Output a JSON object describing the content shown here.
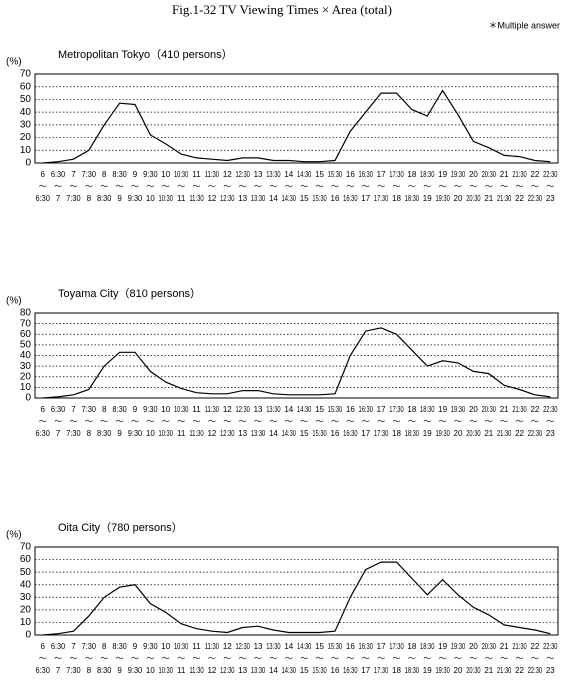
{
  "page": {
    "title": "Fig.1-32 TV Viewing Times × Area (total)",
    "note": "＊Multiple answer",
    "range_mark": "～"
  },
  "chart_data": [
    {
      "type": "line",
      "title": "Metropolitan Tokyo（410 persons）",
      "y_label": "(%)",
      "color": "#000000",
      "categories": [
        [
          "6",
          "6:30"
        ],
        [
          "6:30",
          "7"
        ],
        [
          "7",
          "7:30"
        ],
        [
          "7:30",
          "8"
        ],
        [
          "8",
          "8:30"
        ],
        [
          "8:30",
          "9"
        ],
        [
          "9",
          "9:30"
        ],
        [
          "9:30",
          "10"
        ],
        [
          "10",
          "10:30"
        ],
        [
          "10:30",
          "11"
        ],
        [
          "11",
          "11:30"
        ],
        [
          "11:30",
          "12"
        ],
        [
          "12",
          "12:30"
        ],
        [
          "12:30",
          "13"
        ],
        [
          "13",
          "13:30"
        ],
        [
          "13:30",
          "14"
        ],
        [
          "14",
          "14:30"
        ],
        [
          "14:30",
          "15"
        ],
        [
          "15",
          "15:30"
        ],
        [
          "15:30",
          "16"
        ],
        [
          "16",
          "16:30"
        ],
        [
          "16:30",
          "17"
        ],
        [
          "17",
          "17:30"
        ],
        [
          "17:30",
          "18"
        ],
        [
          "18",
          "18:30"
        ],
        [
          "18:30",
          "19"
        ],
        [
          "19",
          "19:30"
        ],
        [
          "19:30",
          "20"
        ],
        [
          "20",
          "20:30"
        ],
        [
          "20:30",
          "21"
        ],
        [
          "21",
          "21:30"
        ],
        [
          "21:30",
          "22"
        ],
        [
          "22",
          "22:30"
        ],
        [
          "22:30",
          "23"
        ]
      ],
      "values": [
        0,
        1,
        3,
        10,
        30,
        47,
        46,
        22,
        15,
        7,
        4,
        3,
        2,
        4,
        4,
        2,
        2,
        1,
        1,
        2,
        25,
        40,
        55,
        55,
        42,
        37,
        57,
        38,
        17,
        12,
        6,
        5,
        2,
        1
      ],
      "ylim": [
        0,
        70
      ],
      "yticks": [
        0,
        10,
        20,
        30,
        40,
        50,
        60,
        70
      ],
      "grid": true
    },
    {
      "type": "line",
      "title": "Toyama City（810 persons）",
      "y_label": "(%)",
      "color": "#000000",
      "categories": [
        [
          "6",
          "6:30"
        ],
        [
          "6:30",
          "7"
        ],
        [
          "7",
          "7:30"
        ],
        [
          "7:30",
          "8"
        ],
        [
          "8",
          "8:30"
        ],
        [
          "8:30",
          "9"
        ],
        [
          "9",
          "9:30"
        ],
        [
          "9:30",
          "10"
        ],
        [
          "10",
          "10:30"
        ],
        [
          "10:30",
          "11"
        ],
        [
          "11",
          "11:30"
        ],
        [
          "11:30",
          "12"
        ],
        [
          "12",
          "12:30"
        ],
        [
          "12:30",
          "13"
        ],
        [
          "13",
          "13:30"
        ],
        [
          "13:30",
          "14"
        ],
        [
          "14",
          "14:30"
        ],
        [
          "14:30",
          "15"
        ],
        [
          "15",
          "15:30"
        ],
        [
          "15:30",
          "16"
        ],
        [
          "16",
          "16:30"
        ],
        [
          "16:30",
          "17"
        ],
        [
          "17",
          "17:30"
        ],
        [
          "17:30",
          "18"
        ],
        [
          "18",
          "18:30"
        ],
        [
          "18:30",
          "19"
        ],
        [
          "19",
          "19:30"
        ],
        [
          "19:30",
          "20"
        ],
        [
          "20",
          "20:30"
        ],
        [
          "20:30",
          "21"
        ],
        [
          "21",
          "21:30"
        ],
        [
          "21:30",
          "22"
        ],
        [
          "22",
          "22:30"
        ],
        [
          "22:30",
          "23"
        ]
      ],
      "values": [
        0,
        1,
        3,
        8,
        30,
        43,
        43,
        25,
        15,
        9,
        5,
        4,
        4,
        7,
        7,
        4,
        3,
        3,
        3,
        4,
        40,
        63,
        66,
        60,
        45,
        30,
        35,
        33,
        25,
        23,
        12,
        8,
        3,
        1
      ],
      "ylim": [
        0,
        80
      ],
      "yticks": [
        0,
        10,
        20,
        30,
        40,
        50,
        60,
        70,
        80
      ],
      "grid": true
    },
    {
      "type": "line",
      "title": "Oita City（780 persons）",
      "y_label": "(%)",
      "color": "#000000",
      "categories": [
        [
          "6",
          "6:30"
        ],
        [
          "6:30",
          "7"
        ],
        [
          "7",
          "7:30"
        ],
        [
          "7:30",
          "8"
        ],
        [
          "8",
          "8:30"
        ],
        [
          "8:30",
          "9"
        ],
        [
          "9",
          "9:30"
        ],
        [
          "9:30",
          "10"
        ],
        [
          "10",
          "10:30"
        ],
        [
          "10:30",
          "11"
        ],
        [
          "11",
          "11:30"
        ],
        [
          "11:30",
          "12"
        ],
        [
          "12",
          "12:30"
        ],
        [
          "12:30",
          "13"
        ],
        [
          "13",
          "13:30"
        ],
        [
          "13:30",
          "14"
        ],
        [
          "14",
          "14:30"
        ],
        [
          "14:30",
          "15"
        ],
        [
          "15",
          "15:30"
        ],
        [
          "15:30",
          "16"
        ],
        [
          "16",
          "16:30"
        ],
        [
          "16:30",
          "17"
        ],
        [
          "17",
          "17:30"
        ],
        [
          "17:30",
          "18"
        ],
        [
          "18",
          "18:30"
        ],
        [
          "18:30",
          "19"
        ],
        [
          "19",
          "19:30"
        ],
        [
          "19:30",
          "20"
        ],
        [
          "20",
          "20:30"
        ],
        [
          "20:30",
          "21"
        ],
        [
          "21",
          "21:30"
        ],
        [
          "21:30",
          "22"
        ],
        [
          "22",
          "22:30"
        ],
        [
          "22:30",
          "23"
        ]
      ],
      "values": [
        0,
        1,
        3,
        15,
        30,
        38,
        40,
        25,
        18,
        9,
        5,
        3,
        2,
        6,
        7,
        4,
        2,
        2,
        2,
        3,
        30,
        52,
        58,
        58,
        45,
        32,
        44,
        32,
        22,
        16,
        8,
        6,
        4,
        1
      ],
      "ylim": [
        0,
        70
      ],
      "yticks": [
        0,
        10,
        20,
        30,
        40,
        50,
        60,
        70
      ],
      "grid": true
    }
  ]
}
